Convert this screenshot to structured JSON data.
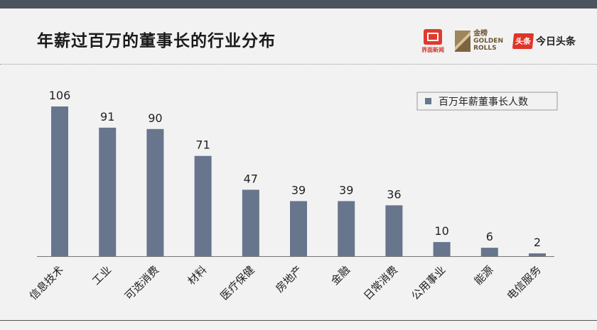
{
  "title": "年薪过百万的董事长的行业分布",
  "logos": {
    "jiemian": "界面新闻",
    "golden_rolls_cn": "金榜",
    "golden_rolls_en_1": "GOLDEN",
    "golden_rolls_en_2": "ROLLS",
    "toutiao_badge": "头条",
    "toutiao_name": "今日头条"
  },
  "colors": {
    "bar": "#67768d",
    "top_bar": "#4a5560",
    "background": "#f2f2f2"
  },
  "chart_data": {
    "type": "bar",
    "title": "年薪过百万的董事长的行业分布",
    "categories": [
      "信息技术",
      "工业",
      "可选消费",
      "材料",
      "医疗保健",
      "房地产",
      "金融",
      "日常消费",
      "公用事业",
      "能源",
      "电信服务"
    ],
    "series": [
      {
        "name": "百万年薪董事长人数",
        "values": [
          106,
          91,
          90,
          71,
          47,
          39,
          39,
          36,
          10,
          6,
          2
        ]
      }
    ],
    "xlabel": "",
    "ylabel": "",
    "ylim": [
      0,
      106
    ],
    "grid": false,
    "legend": "top-right",
    "data_labels": true
  }
}
